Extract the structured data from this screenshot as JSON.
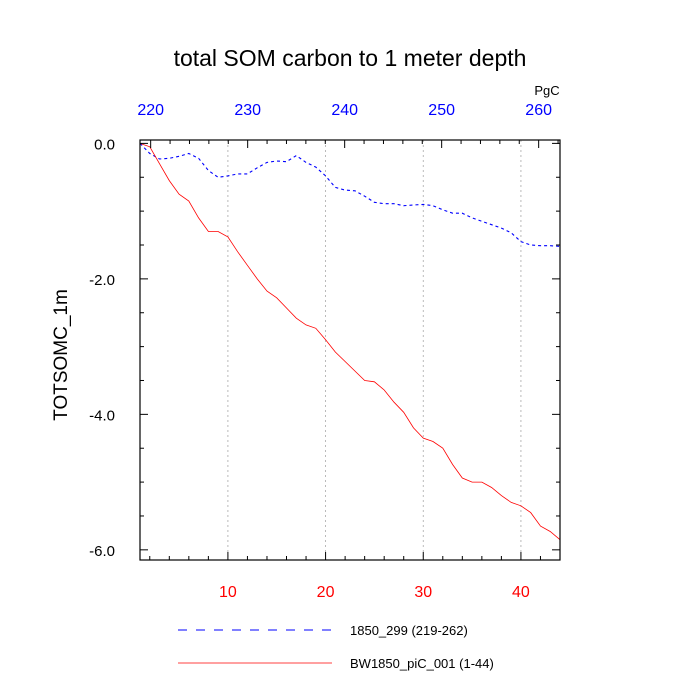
{
  "chart_data": {
    "type": "line",
    "title": "total SOM carbon to 1 meter depth",
    "ylabel": "TOTSOMC_1m",
    "units": "PgC",
    "grid": "vertical dotted",
    "legend_placement": "bottom",
    "colors": {
      "bottom_axis": "#ff0000",
      "top_axis": "#0000ff",
      "series_1850_299": "#0000ff",
      "series_BW1850": "#ff0000",
      "grid": "#aaaaaa"
    },
    "axes": {
      "bottom": {
        "min": 1,
        "max": 44,
        "ticks": [
          10,
          20,
          30,
          40
        ],
        "tick_labels": [
          "10",
          "20",
          "30",
          "40"
        ]
      },
      "top": {
        "min": 218.9,
        "max": 262.2,
        "ticks": [
          220,
          230,
          240,
          250,
          260
        ],
        "tick_labels": [
          "220",
          "230",
          "240",
          "250",
          "260"
        ]
      },
      "left": {
        "min": -6.15,
        "max": 0.05,
        "ticks": [
          0.0,
          -2.0,
          -4.0,
          -6.0
        ],
        "tick_labels": [
          "0.0",
          "-2.0",
          "-4.0",
          "-6.0"
        ]
      }
    },
    "x": [
      1,
      2,
      3,
      4,
      5,
      6,
      7,
      8,
      9,
      10,
      11,
      12,
      13,
      14,
      15,
      16,
      17,
      18,
      19,
      20,
      21,
      22,
      23,
      24,
      25,
      26,
      27,
      28,
      29,
      30,
      31,
      32,
      33,
      34,
      35,
      36,
      37,
      38,
      39,
      40,
      41,
      42,
      43,
      44
    ],
    "series": [
      {
        "name": "1850_299 (219-262)",
        "style": "dashed",
        "values": [
          0.0,
          -0.15,
          -0.23,
          -0.22,
          -0.19,
          -0.15,
          -0.22,
          -0.4,
          -0.5,
          -0.48,
          -0.45,
          -0.45,
          -0.36,
          -0.28,
          -0.26,
          -0.27,
          -0.18,
          -0.28,
          -0.35,
          -0.48,
          -0.65,
          -0.69,
          -0.7,
          -0.78,
          -0.87,
          -0.89,
          -0.89,
          -0.92,
          -0.91,
          -0.9,
          -0.92,
          -0.98,
          -1.03,
          -1.03,
          -1.1,
          -1.15,
          -1.2,
          -1.25,
          -1.32,
          -1.45,
          -1.5,
          -1.51,
          -1.51,
          -1.52
        ]
      },
      {
        "name": "BW1850_piC_001 (1-44)",
        "style": "solid",
        "values": [
          0.0,
          -0.05,
          -0.3,
          -0.55,
          -0.75,
          -0.85,
          -1.1,
          -1.3,
          -1.3,
          -1.38,
          -1.6,
          -1.8,
          -2.0,
          -2.18,
          -2.28,
          -2.43,
          -2.58,
          -2.68,
          -2.73,
          -2.9,
          -3.08,
          -3.22,
          -3.36,
          -3.5,
          -3.52,
          -3.64,
          -3.82,
          -3.97,
          -4.2,
          -4.35,
          -4.4,
          -4.5,
          -4.74,
          -4.94,
          -5.0,
          -5.0,
          -5.08,
          -5.2,
          -5.3,
          -5.35,
          -5.45,
          -5.65,
          -5.73,
          -5.85
        ]
      }
    ]
  }
}
